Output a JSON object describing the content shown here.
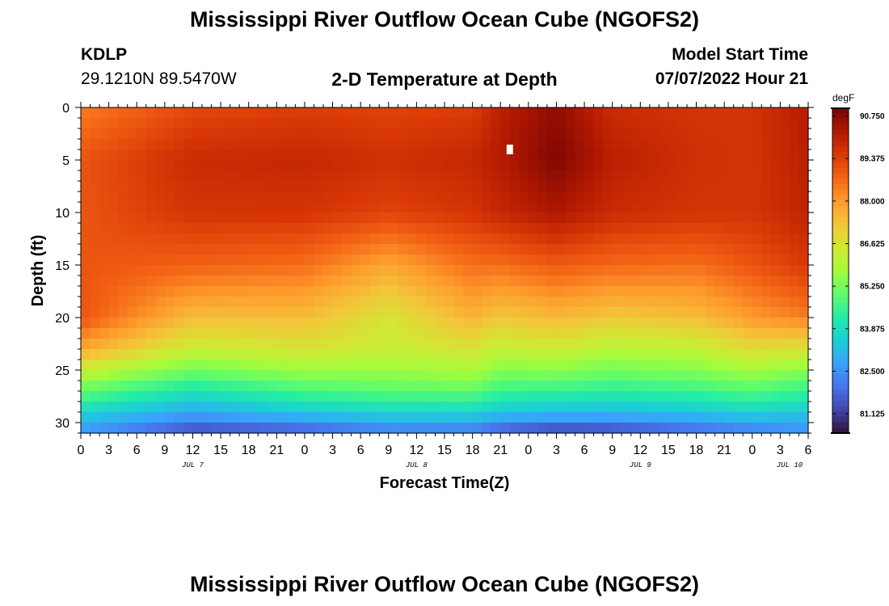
{
  "header": {
    "title": "Mississippi River Outflow Ocean Cube (NGOFS2)",
    "station": "KDLP",
    "coords": "29.1210N  89.5470W",
    "subtitle": "2-D Temperature at Depth",
    "model_start_label": "Model Start Time",
    "model_start_value": "07/07/2022 Hour 21"
  },
  "footer": {
    "title": "Mississippi River Outflow Ocean Cube (NGOFS2)"
  },
  "chart_data": {
    "type": "heatmap",
    "xlabel": "Forecast Time(Z)",
    "ylabel": "Depth (ft)",
    "x_tick_labels": [
      "0",
      "3",
      "6",
      "9",
      "12",
      "15",
      "18",
      "21",
      "0",
      "3",
      "6",
      "9",
      "12",
      "15",
      "18",
      "21",
      "0",
      "3",
      "6",
      "9",
      "12",
      "15",
      "18",
      "21",
      "0",
      "3",
      "6"
    ],
    "x_range_hours": [
      0,
      78
    ],
    "date_labels": [
      {
        "label": "JUL 7",
        "hour": 12
      },
      {
        "label": "JUL 8",
        "hour": 36
      },
      {
        "label": "JUL 9",
        "hour": 60
      },
      {
        "label": "JUL 10",
        "hour": 76
      }
    ],
    "y_ticks": [
      0,
      5,
      10,
      15,
      20,
      25,
      30
    ],
    "ylim": [
      0,
      31
    ],
    "y_inverted": true,
    "colorbar": {
      "unit": "degF",
      "labels": [
        "90.750",
        "89.375",
        "88.000",
        "86.625",
        "85.250",
        "83.875",
        "82.500",
        "81.125"
      ],
      "range": [
        80.5,
        91.0
      ],
      "colors": [
        "#30123b",
        "#4145ab",
        "#4675ed",
        "#39a2fc",
        "#1bcfd4",
        "#24eca6",
        "#61fc6c",
        "#a4fc3b",
        "#d1e834",
        "#f3c63a",
        "#fe9b2d",
        "#f36315",
        "#d93806",
        "#b11901",
        "#7a0402"
      ]
    },
    "depth_profiles": [
      {
        "depth": 0,
        "temps": {
          "0": 88.4,
          "12": 89.2,
          "24": 89.4,
          "33": 89.3,
          "42": 89.4,
          "45": 90.1,
          "51": 90.7,
          "57": 89.8,
          "66": 89.6,
          "72": 89.6,
          "78": 90.2
        }
      },
      {
        "depth": 5,
        "temps": {
          "0": 89.0,
          "12": 89.8,
          "24": 89.9,
          "33": 89.7,
          "42": 89.9,
          "45": 90.2,
          "51": 90.9,
          "57": 90.1,
          "66": 89.7,
          "72": 89.6,
          "78": 90.1
        }
      },
      {
        "depth": 10,
        "temps": {
          "0": 89.0,
          "12": 89.6,
          "24": 89.6,
          "33": 89.3,
          "42": 89.6,
          "45": 89.9,
          "51": 90.3,
          "57": 89.8,
          "66": 89.6,
          "72": 89.6,
          "78": 90.0
        }
      },
      {
        "depth": 15,
        "temps": {
          "0": 89.0,
          "12": 88.8,
          "24": 88.6,
          "33": 87.8,
          "42": 88.6,
          "45": 88.6,
          "51": 88.9,
          "57": 88.7,
          "66": 88.6,
          "72": 89.0,
          "78": 89.5
        }
      },
      {
        "depth": 20,
        "temps": {
          "0": 89.0,
          "12": 87.4,
          "24": 87.4,
          "33": 86.6,
          "42": 87.6,
          "45": 87.2,
          "51": 87.5,
          "57": 87.2,
          "66": 87.4,
          "72": 88.0,
          "78": 88.4
        }
      },
      {
        "depth": 23,
        "temps": {
          "0": 87.8,
          "12": 86.3,
          "24": 86.6,
          "33": 86.3,
          "42": 86.6,
          "45": 86.2,
          "51": 86.4,
          "57": 86.0,
          "66": 86.2,
          "72": 86.8,
          "78": 86.6
        }
      },
      {
        "depth": 26,
        "temps": {
          "0": 85.6,
          "12": 84.6,
          "24": 85.2,
          "33": 85.3,
          "42": 85.5,
          "45": 85.0,
          "51": 85.0,
          "57": 84.8,
          "66": 85.0,
          "72": 85.3,
          "78": 84.9
        }
      },
      {
        "depth": 28,
        "temps": {
          "0": 84.4,
          "12": 83.4,
          "24": 84.1,
          "33": 84.4,
          "42": 84.4,
          "45": 84.0,
          "51": 83.9,
          "57": 83.8,
          "66": 84.0,
          "72": 84.3,
          "78": 84.0
        }
      },
      {
        "depth": 30,
        "temps": {
          "0": 83.0,
          "12": 82.2,
          "24": 82.6,
          "33": 82.9,
          "42": 82.9,
          "45": 82.6,
          "51": 82.4,
          "57": 82.4,
          "66": 82.6,
          "72": 82.9,
          "78": 82.8
        }
      },
      {
        "depth": 31,
        "temps": {
          "0": 82.6,
          "12": 81.1,
          "24": 81.3,
          "33": 82.0,
          "42": 81.9,
          "45": 81.3,
          "51": 80.8,
          "57": 81.0,
          "66": 81.6,
          "72": 82.0,
          "78": 82.5
        }
      }
    ],
    "marker": {
      "hour": 46,
      "depth": 4
    }
  }
}
